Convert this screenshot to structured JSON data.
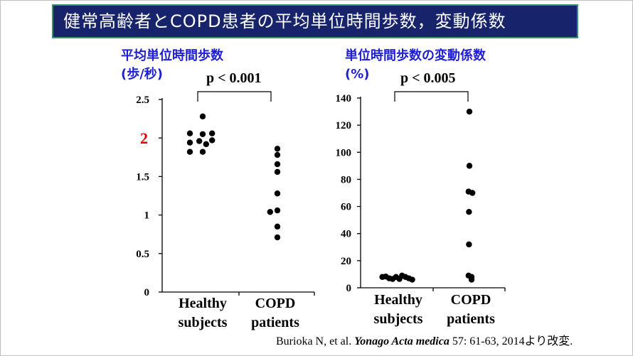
{
  "slide": {
    "title": "健常高齢者とCOPD患者の平均単位時間歩数，変動係数",
    "citation": {
      "authors": "Burioka N, et al.",
      "journal": "Yonago Acta medica",
      "details": "57: 61-63, 2014より改変."
    }
  },
  "chart_data": [
    {
      "type": "scatter",
      "title": "平均単位時間歩数",
      "ylabel": "(歩/秒)",
      "categories": [
        "Healthy subjects",
        "COPD patients"
      ],
      "category_lines": [
        [
          "Healthy",
          "subjects"
        ],
        [
          "COPD",
          "patients"
        ]
      ],
      "ylim": [
        0,
        2.5
      ],
      "yticks": [
        {
          "value": 0,
          "label": "0"
        },
        {
          "value": 0.5,
          "label": "0.5"
        },
        {
          "value": 1,
          "label": "1"
        },
        {
          "value": 1.5,
          "label": "1.5"
        },
        {
          "value": 2,
          "label": "2",
          "highlight": true,
          "color": "#e00000"
        },
        {
          "value": 2.5,
          "label": "2.5"
        }
      ],
      "pvalue": "p < 0.001",
      "points": [
        {
          "group": 0,
          "offset": -0.3,
          "y": 2.06
        },
        {
          "group": 0,
          "offset": 0.0,
          "y": 2.05
        },
        {
          "group": 0,
          "offset": 0.22,
          "y": 2.06
        },
        {
          "group": 0,
          "offset": -0.3,
          "y": 1.94
        },
        {
          "group": 0,
          "offset": -0.08,
          "y": 1.96
        },
        {
          "group": 0,
          "offset": 0.0,
          "y": 2.28
        },
        {
          "group": 0,
          "offset": 0.22,
          "y": 1.97
        },
        {
          "group": 0,
          "offset": 0.08,
          "y": 1.92
        },
        {
          "group": 0,
          "offset": -0.3,
          "y": 1.82
        },
        {
          "group": 0,
          "offset": 0.0,
          "y": 1.82
        },
        {
          "group": 1,
          "offset": 0.05,
          "y": 1.86
        },
        {
          "group": 1,
          "offset": 0.05,
          "y": 1.78
        },
        {
          "group": 1,
          "offset": 0.05,
          "y": 1.66
        },
        {
          "group": 1,
          "offset": 0.05,
          "y": 1.56
        },
        {
          "group": 1,
          "offset": 0.05,
          "y": 1.28
        },
        {
          "group": 1,
          "offset": 0.05,
          "y": 1.06
        },
        {
          "group": 1,
          "offset": -0.12,
          "y": 1.04
        },
        {
          "group": 1,
          "offset": 0.05,
          "y": 0.85
        },
        {
          "group": 1,
          "offset": 0.05,
          "y": 0.71
        }
      ]
    },
    {
      "type": "scatter",
      "title": "単位時間歩数の変動係数",
      "ylabel": "(%)",
      "categories": [
        "Healthy subjects",
        "COPD patients"
      ],
      "category_lines": [
        [
          "Healthy",
          "subjects"
        ],
        [
          "COPD",
          "patients"
        ]
      ],
      "ylim": [
        0,
        140
      ],
      "yticks": [
        {
          "value": 0,
          "label": "0"
        },
        {
          "value": 20,
          "label": "20"
        },
        {
          "value": 40,
          "label": "40"
        },
        {
          "value": 60,
          "label": "60"
        },
        {
          "value": 80,
          "label": "80"
        },
        {
          "value": 100,
          "label": "100"
        },
        {
          "value": 120,
          "label": "120"
        },
        {
          "value": 140,
          "label": "140"
        }
      ],
      "pvalue": "p < 0.005",
      "points": [
        {
          "group": 0,
          "offset": -0.34,
          "y": 8
        },
        {
          "group": 0,
          "offset": -0.26,
          "y": 8.3
        },
        {
          "group": 0,
          "offset": -0.18,
          "y": 7
        },
        {
          "group": 0,
          "offset": -0.1,
          "y": 6.5
        },
        {
          "group": 0,
          "offset": -0.02,
          "y": 8
        },
        {
          "group": 0,
          "offset": 0.06,
          "y": 6.5
        },
        {
          "group": 0,
          "offset": 0.12,
          "y": 9
        },
        {
          "group": 0,
          "offset": 0.2,
          "y": 8
        },
        {
          "group": 0,
          "offset": 0.28,
          "y": 7
        },
        {
          "group": 0,
          "offset": 0.36,
          "y": 6
        },
        {
          "group": 1,
          "offset": 0.0,
          "y": 130
        },
        {
          "group": 1,
          "offset": 0.0,
          "y": 90
        },
        {
          "group": 1,
          "offset": -0.02,
          "y": 71
        },
        {
          "group": 1,
          "offset": 0.07,
          "y": 70
        },
        {
          "group": 1,
          "offset": -0.01,
          "y": 56
        },
        {
          "group": 1,
          "offset": -0.01,
          "y": 32
        },
        {
          "group": 1,
          "offset": -0.02,
          "y": 9
        },
        {
          "group": 1,
          "offset": 0.05,
          "y": 8
        },
        {
          "group": 1,
          "offset": 0.05,
          "y": 6
        }
      ]
    }
  ]
}
